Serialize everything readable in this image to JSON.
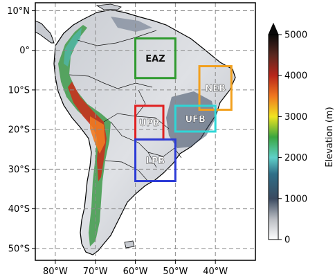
{
  "map": {
    "lat_ticks": [
      "10°N",
      "0°",
      "10°S",
      "20°S",
      "30°S",
      "40°S",
      "50°S"
    ],
    "lon_ticks": [
      "80°W",
      "70°W",
      "60°W",
      "50°W",
      "40°W"
    ],
    "lat_values": [
      10,
      0,
      -10,
      -20,
      -30,
      -40,
      -50
    ],
    "lon_values": [
      -80,
      -70,
      -60,
      -50,
      -40
    ],
    "extent": {
      "lon_min": -85,
      "lon_max": -30,
      "lat_min": -53,
      "lat_max": 12
    },
    "gridlines": true
  },
  "regions": [
    {
      "name": "EAZ",
      "color": "#2e9a2e",
      "lon": [
        -60,
        -50
      ],
      "lat": [
        -7,
        3
      ]
    },
    {
      "name": "NEB",
      "color": "#f2a01e",
      "lon": [
        -44,
        -36
      ],
      "lat": [
        -15,
        -4
      ]
    },
    {
      "name": "UFB",
      "color": "#2fd6d6",
      "lon": [
        -50,
        -40
      ],
      "lat": [
        -20.5,
        -14
      ]
    },
    {
      "name": "UPB",
      "color": "#e02020",
      "lon": [
        -60,
        -53
      ],
      "lat": [
        -22.5,
        -14
      ]
    },
    {
      "name": "LPB",
      "color": "#2b3ad6",
      "lon": [
        -60,
        -50
      ],
      "lat": [
        -33,
        -22.5
      ]
    }
  ],
  "colorbar": {
    "label": "Elevation (m)",
    "ticks": [
      "5000",
      "4000",
      "3000",
      "2000",
      "1000",
      "0"
    ],
    "tick_values": [
      5000,
      4000,
      3000,
      2000,
      1000,
      0
    ],
    "min": 0,
    "max": 5000
  }
}
